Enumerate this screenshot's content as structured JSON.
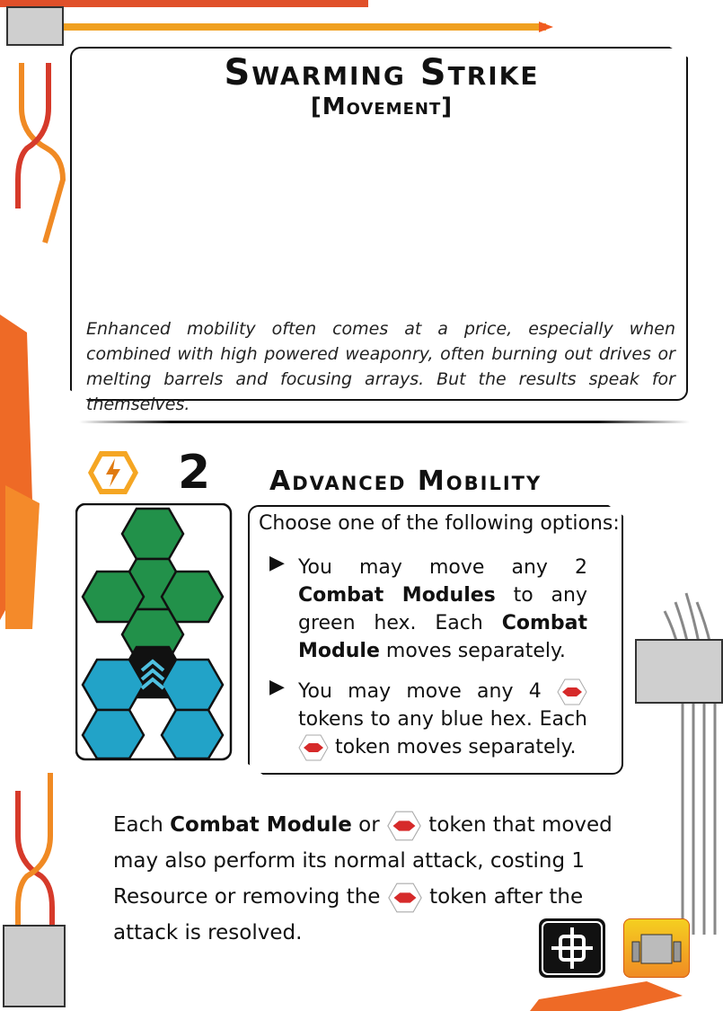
{
  "card": {
    "title": "Swarming Strike",
    "subtitle": "[Movement]",
    "flavor": "Enhanced mobility often comes at a price, especially when combined with high powered weaponry, often burning out drives or melting barrels and focusing arrays. But the results speak for themselves."
  },
  "ability": {
    "cost": "2",
    "name": "Advanced Mobility",
    "intro": "Choose one of the following options:",
    "option1_parts": [
      "You may move any 2 ",
      "Combat Modules",
      " to any green hex. Each ",
      "Combat Module",
      " moves separately."
    ],
    "option2_parts": [
      "You may move any 4 ",
      " tokens to any blue hex. Each ",
      " token moves separately."
    ],
    "bottom_parts": [
      "Each ",
      "Combat Module",
      " or ",
      " token that moved may also perform its normal attack, costing 1 Resource or removing the ",
      " token after the attack is resolved."
    ]
  },
  "icons": [
    "energy-icon",
    "target-icon",
    "fighter-squadron-icon",
    "fighter-token-icon",
    "chevron-up-icon"
  ],
  "colors": {
    "green": "#22914a",
    "blue": "#22a3c8",
    "accent_orange": "#f08a24",
    "accent_red": "#d63a2a",
    "gold": "#f5c518"
  }
}
